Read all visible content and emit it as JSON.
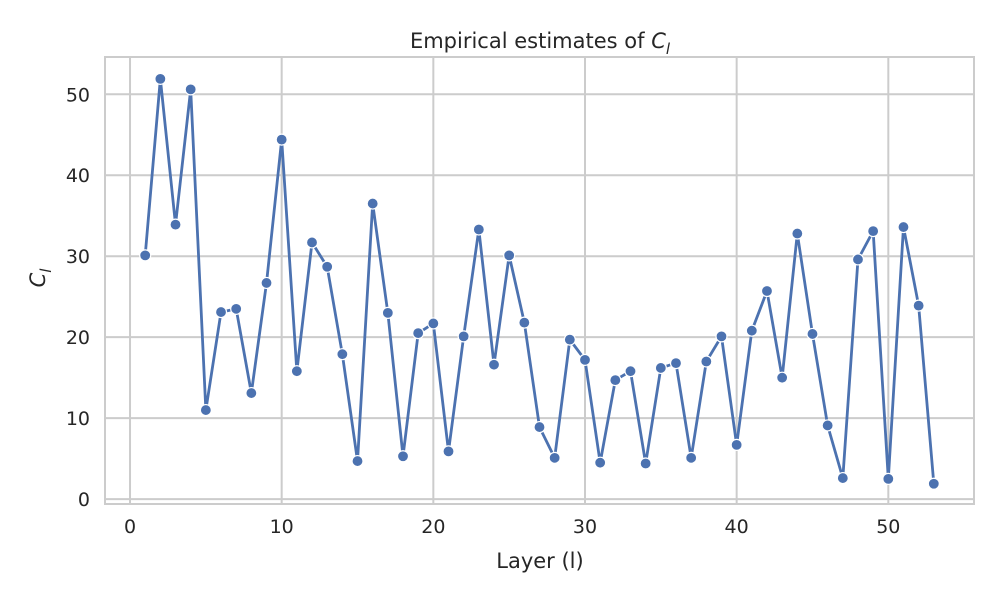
{
  "chart_data": {
    "type": "line",
    "title": "Empirical estimates of",
    "title_symbol": "C",
    "title_subscript": "l",
    "xlabel": "Layer (l)",
    "ylabel_symbol": "C",
    "ylabel_subscript": "l",
    "xlim": [
      -1.65,
      55.65
    ],
    "ylim": [
      -0.6,
      54.6
    ],
    "xticks": [
      0,
      10,
      20,
      30,
      40,
      50
    ],
    "yticks": [
      0,
      10,
      20,
      30,
      40,
      50
    ],
    "grid": true,
    "colors": {
      "line": "#4c72b0",
      "grid": "#cccccc",
      "frame": "#cccccc"
    },
    "series": [
      {
        "x": [
          1,
          2,
          3,
          4,
          5,
          6,
          7,
          8,
          9,
          10,
          11,
          12,
          13,
          14,
          15,
          16,
          17,
          18,
          19,
          20,
          21,
          22,
          23,
          24,
          25,
          26,
          27,
          28,
          29,
          30,
          31,
          32,
          33,
          34,
          35,
          36,
          37,
          38,
          39,
          40,
          41,
          42,
          43,
          44,
          45,
          46,
          47,
          48,
          49,
          50,
          51,
          52,
          53
        ],
        "y": [
          30.1,
          51.9,
          33.9,
          50.6,
          11.0,
          23.1,
          23.5,
          13.1,
          26.7,
          44.4,
          15.8,
          31.7,
          28.7,
          17.9,
          4.7,
          36.5,
          23.0,
          5.3,
          20.5,
          21.7,
          5.9,
          20.1,
          33.3,
          16.6,
          30.1,
          21.8,
          8.9,
          5.1,
          19.7,
          17.2,
          4.5,
          14.7,
          15.8,
          4.4,
          16.2,
          16.8,
          5.1,
          17.0,
          20.1,
          6.7,
          20.8,
          25.7,
          15.0,
          32.8,
          20.4,
          9.1,
          2.6,
          29.6,
          33.1,
          2.5,
          33.6,
          23.9,
          1.9
        ]
      }
    ]
  }
}
